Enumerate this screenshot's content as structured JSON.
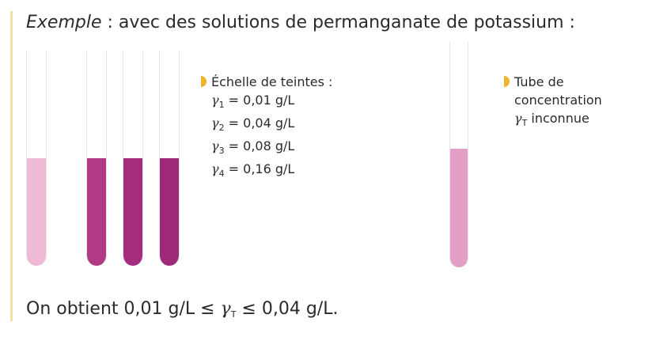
{
  "intro": {
    "lead": "Exemple",
    "rest": " : avec des solutions de permanganate de potassium :"
  },
  "scale": {
    "title": "Échelle de teintes :",
    "entries": [
      {
        "symbol": "γ",
        "sub": "1",
        "value": " = 0,01 g/L"
      },
      {
        "symbol": "γ",
        "sub": "2",
        "value": " = 0,04 g/L"
      },
      {
        "symbol": "γ",
        "sub": "3",
        "value": " = 0,08 g/L"
      },
      {
        "symbol": "γ",
        "sub": "4",
        "value": " = 0,16 g/L"
      }
    ]
  },
  "unknown": {
    "line1": "Tube de",
    "line2": "concentration",
    "symbol": "γ",
    "sub": "T",
    "line3_rest": " inconnue"
  },
  "result": {
    "prefix": "On obtient 0,01 g/L ≤ ",
    "symbol": "γ",
    "sub": "T",
    "suffix": " ≤ 0,04 g/L."
  },
  "colors": {
    "accent_bar": "#f2dfa6",
    "marker": "#f0b32b",
    "solution_1": "#eebad6",
    "solution_2": "#b03b84",
    "solution_3": "#a52d7d",
    "solution_4": "#9c2a79",
    "solution_unknown": "#e2a0c6"
  }
}
